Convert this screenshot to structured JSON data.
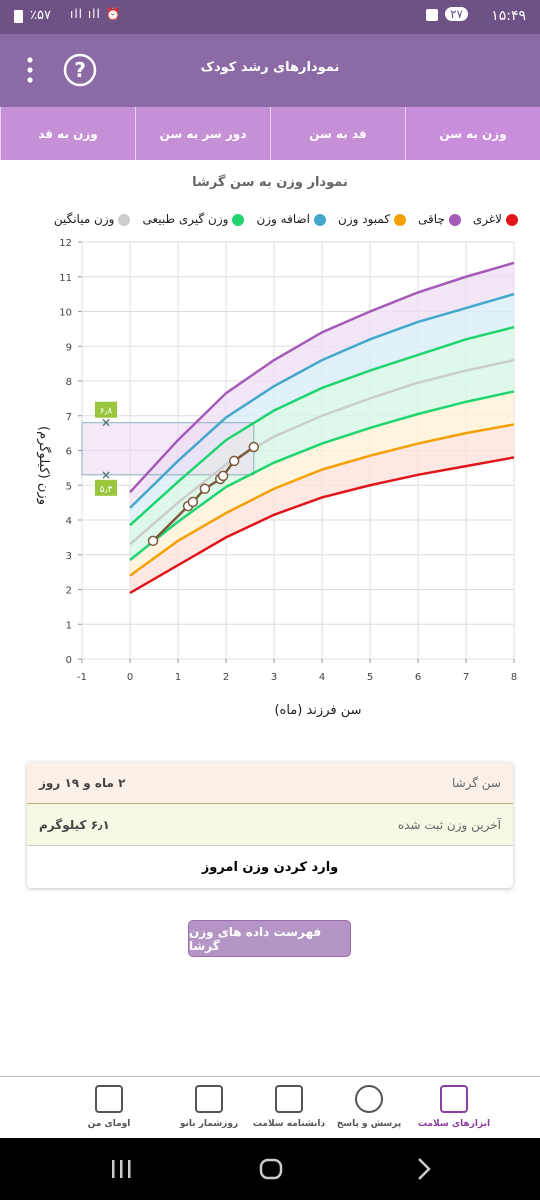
{
  "status": {
    "time": "۱۵:۴۹",
    "badge": "۲۷",
    "battery": "٪۵۷"
  },
  "header": {
    "title": "نمودارهای رشد کودک"
  },
  "tabs": [
    "وزن به سن",
    "قد به سن",
    "دور سر به سن",
    "وزن به قد"
  ],
  "chart_data": {
    "type": "line",
    "title": "نمودار وزن به سن گرشا",
    "x_label": "سن فرزند (ماه)",
    "y_label": "وزن (کیلوگرم)",
    "legend": [
      {
        "name": "لاغری",
        "color": "#e0151b"
      },
      {
        "name": "چاقی",
        "color": "#a55ab8"
      },
      {
        "name": "کمبود وزن",
        "color": "#f5a000"
      },
      {
        "name": "اضافه وزن",
        "color": "#43a8cc"
      },
      {
        "name": "وزن گیری طبیعی",
        "color": "#20d470"
      },
      {
        "name": "وزن میانگین",
        "color": "#cccccc"
      }
    ],
    "x": [
      0,
      1,
      2,
      3,
      4,
      5,
      6,
      7,
      8
    ],
    "series": [
      {
        "color": "#e0151b",
        "band_color": "#fde2dc",
        "values": [
          1.9,
          2.7,
          3.5,
          4.15,
          4.65,
          5.0,
          5.3,
          5.55,
          5.8
        ]
      },
      {
        "color": "#f5a000",
        "band_color": "#fff1d4",
        "values": [
          2.4,
          3.4,
          4.2,
          4.9,
          5.45,
          5.85,
          6.2,
          6.5,
          6.75
        ]
      },
      {
        "color": "#20d470",
        "band_color": "#d6f7e3",
        "values": [
          2.85,
          3.95,
          4.95,
          5.65,
          6.2,
          6.65,
          7.05,
          7.4,
          7.7
        ]
      },
      {
        "color": "#cccccc",
        "band_color": "#d6f7e3",
        "values": [
          3.3,
          4.5,
          5.6,
          6.4,
          7.0,
          7.5,
          7.95,
          8.3,
          8.6
        ]
      },
      {
        "color": "#20d470",
        "band_color": "#d8eef8",
        "values": [
          3.85,
          5.1,
          6.3,
          7.15,
          7.8,
          8.3,
          8.75,
          9.2,
          9.55
        ]
      },
      {
        "color": "#43a8cc",
        "band_color": "#f0e0f4",
        "values": [
          4.35,
          5.7,
          6.95,
          7.85,
          8.6,
          9.2,
          9.7,
          10.1,
          10.5
        ]
      },
      {
        "color": "#a55ab8",
        "values": [
          4.8,
          6.3,
          7.65,
          8.6,
          9.4,
          10.0,
          10.55,
          11.0,
          11.4
        ]
      }
    ],
    "child": {
      "color": "#7a5a3a",
      "x": [
        0.48,
        1.21,
        1.31,
        1.56,
        1.88,
        1.94,
        2.17,
        2.58
      ],
      "values": [
        3.4,
        4.4,
        4.52,
        4.9,
        5.18,
        5.27,
        5.7,
        6.1
      ]
    },
    "marker_x": -0.5,
    "markers": [
      {
        "value": 6.8,
        "label": "۶٫۸"
      },
      {
        "value": 5.3,
        "label": "۵٫۳"
      }
    ],
    "xlim": [
      -1,
      8
    ],
    "xticks": [
      -1,
      0,
      1,
      2,
      3,
      4,
      5,
      6,
      7,
      8
    ],
    "ylim": [
      0,
      12
    ],
    "yticks": [
      0,
      1,
      2,
      3,
      4,
      5,
      6,
      7,
      8,
      9,
      10,
      11,
      12
    ],
    "grid": true
  },
  "info": {
    "rows": [
      {
        "label": "سن گرشا",
        "value": "۲ ماه و ۱۹ روز"
      },
      {
        "label": "آخرین وزن ثبت شده",
        "value": "۶٫۱ کیلوگرم"
      }
    ],
    "action": "وارد کردن وزن امروز"
  },
  "list_button": "فهرست داده های وزن گرشا",
  "nav": [
    "ابزارهای سلامت",
    "پرسش و پاسخ",
    "دانشنامه سلامت",
    "روزشمار بانو",
    "اومای من"
  ]
}
